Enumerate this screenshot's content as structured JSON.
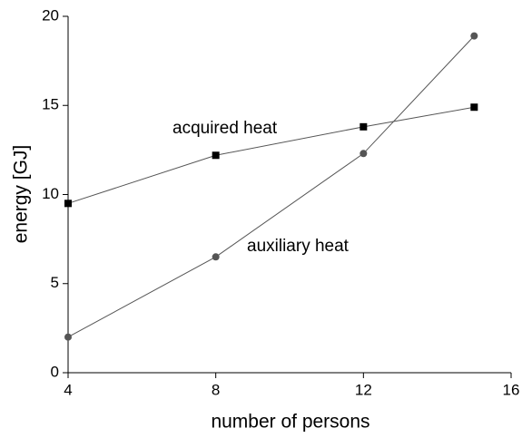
{
  "chart_data": {
    "type": "line",
    "x_label": "number of persons",
    "y_label": "energy [GJ]",
    "x": [
      4,
      8,
      12,
      15
    ],
    "series": [
      {
        "name": "acquired heat",
        "color": "#555555",
        "marker": "square",
        "marker_color": "#000000",
        "values": [
          9.5,
          12.2,
          13.8,
          14.9
        ]
      },
      {
        "name": "auxiliary heat",
        "color": "#555555",
        "marker": "circle",
        "marker_color": "#555555",
        "values": [
          2.0,
          6.5,
          12.3,
          18.9
        ]
      }
    ],
    "xlim": [
      4,
      16
    ],
    "xticks": [
      4,
      8,
      12,
      16
    ],
    "ylim": [
      0,
      20
    ],
    "yticks": [
      0,
      5,
      10,
      15,
      20
    ],
    "grid": false
  }
}
